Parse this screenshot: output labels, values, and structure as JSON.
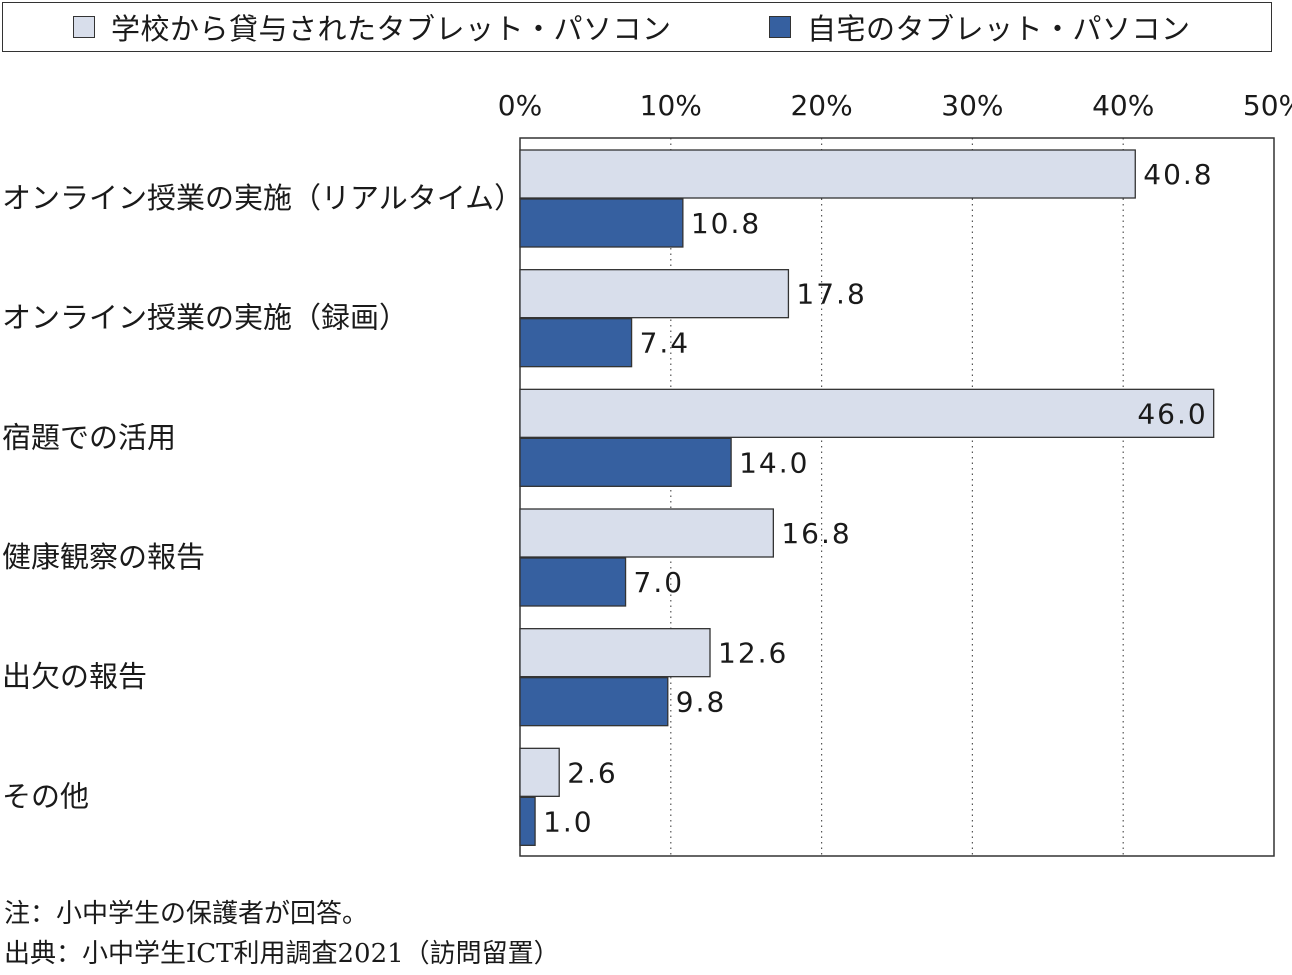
{
  "chart_data": {
    "type": "bar",
    "orientation": "horizontal",
    "categories": [
      "オンライン授業の実施（リアルタイム）",
      "オンライン授業の実施（録画）",
      "宿題での活用",
      "健康観察の報告",
      "出欠の報告",
      "その他"
    ],
    "series": [
      {
        "name": "学校から貸与されたタブレット・パソコン",
        "color": "#d8deeb",
        "values": [
          40.8,
          17.8,
          46.0,
          16.8,
          12.6,
          2.6
        ],
        "labels": [
          "40.8",
          "17.8",
          "46.0",
          "16.8",
          "12.6",
          "2.6"
        ]
      },
      {
        "name": "自宅のタブレット・パソコン",
        "color": "#3660a0",
        "values": [
          10.8,
          7.4,
          14.0,
          7.0,
          9.8,
          1.0
        ],
        "labels": [
          "10.8",
          "7.4",
          "14.0",
          "7.0",
          "9.8",
          "1.0"
        ]
      }
    ],
    "xlim": [
      0,
      50
    ],
    "ticks": [
      0,
      10,
      20,
      30,
      40,
      50
    ],
    "tick_labels": [
      "0%",
      "10%",
      "20%",
      "30%",
      "40%",
      "50%"
    ],
    "grid": "vertical dotted",
    "legend": "top"
  },
  "notes": {
    "note": "注：小中学生の保護者が回答。",
    "source": "出典：小中学生ICT利用調査2021（訪問留置）"
  }
}
